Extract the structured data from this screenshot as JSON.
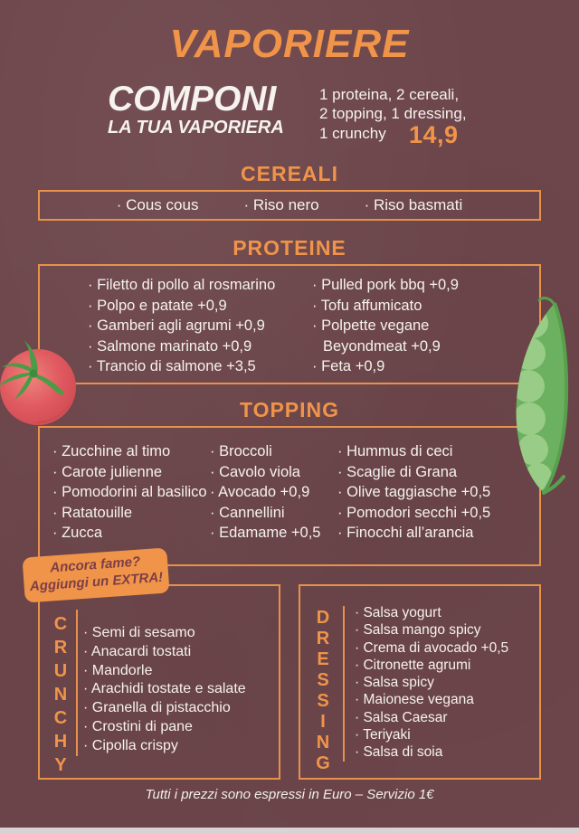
{
  "page": {
    "title": "VAPORIERE",
    "subtitle_line1": "COMPONI",
    "subtitle_line2": "LA TUA VAPORIERA",
    "formula_lines": "1 proteina, 2 cereali,\n2 topping, 1 dressing,\n1 crunchy",
    "price": "14,9",
    "footer_note": "Tutti i prezzi sono espressi in Euro – Servizio 1€"
  },
  "sections": {
    "cereali": {
      "title": "CEREALI",
      "items": [
        "Cous cous",
        "Riso nero",
        "Riso basmati"
      ]
    },
    "proteine": {
      "title": "PROTEINE",
      "col1": [
        "Filetto di pollo al rosmarino",
        "Polpo e patate +0,9",
        "Gamberi agli agrumi +0,9",
        "Salmone marinato +0,9",
        "Trancio di salmone +3,5"
      ],
      "col2": [
        "Pulled pork bbq +0,9",
        "Tofu affumicato",
        "Polpette vegane Beyondmeat +0,9",
        "Feta +0,9"
      ]
    },
    "topping": {
      "title": "TOPPING",
      "col1": [
        "Zucchine al timo",
        "Carote julienne",
        "Pomodorini al basilico",
        "Ratatouille",
        "Zucca"
      ],
      "col2": [
        "Broccoli",
        "Cavolo viola",
        "Avocado +0,9",
        "Cannellini",
        "Edamame +0,5"
      ],
      "col3": [
        "Hummus di ceci",
        "Scaglie di Grana",
        "Olive taggiasche +0,5",
        "Pomodori secchi +0,5",
        "Finocchi all’arancia"
      ]
    },
    "extra_badge": {
      "line1": "Ancora fame?",
      "line2": "Aggiungi un EXTRA!"
    },
    "crunchy": {
      "title": "CRUNCHY",
      "items": [
        "Semi di sesamo",
        "Anacardi tostati",
        "Mandorle",
        "Arachidi tostate e salate",
        "Granella di pistacchio",
        "Crostini di pane",
        "Cipolla crispy"
      ]
    },
    "dressing": {
      "title": "DRESSING",
      "items": [
        "Salsa yogurt",
        "Salsa mango spicy",
        "Crema di avocado +0,5",
        "Citronette agrumi",
        "Salsa spicy",
        "Maionese vegana",
        "Salsa Caesar",
        "Teriyaki",
        "Salsa di soia"
      ]
    }
  },
  "illustrations": {
    "left": "tomato-illustration",
    "right": "pea-pod-illustration"
  },
  "colors": {
    "background": "#6d464b",
    "accent_orange": "#f0944a",
    "border_orange": "#e8914c",
    "text_white": "#f6f2ef",
    "badge_background": "#f0944a",
    "badge_text": "#7d3e46",
    "tomato_red": "#dd5358",
    "leaf_green": "#4d9b47",
    "pea_green": "#6cb160",
    "bottom_strip": "#d9d4d3"
  }
}
